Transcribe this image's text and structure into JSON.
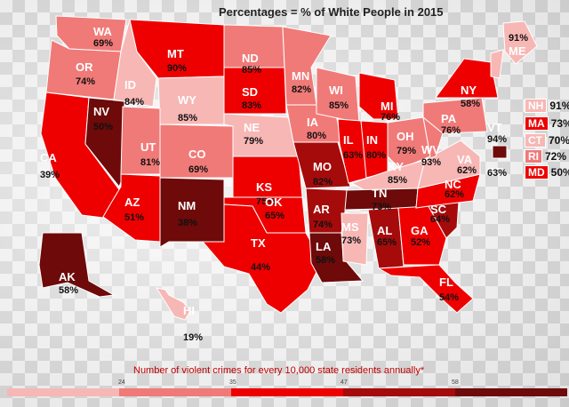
{
  "title": "Percentages = % of White People in 2015",
  "colors": {
    "lightest": "#f7b7b5",
    "light": "#f07a78",
    "mid": "#e83a36",
    "red": "#ee0000",
    "dark": "#a50b0b",
    "darkest": "#6e0a0a"
  },
  "states": [
    {
      "abbr": "WA",
      "pct": "69%"
    },
    {
      "abbr": "OR",
      "pct": "74%"
    },
    {
      "abbr": "CA",
      "pct": "39%"
    },
    {
      "abbr": "NV",
      "pct": "50%"
    },
    {
      "abbr": "ID",
      "pct": "84%"
    },
    {
      "abbr": "MT",
      "pct": "90%"
    },
    {
      "abbr": "WY",
      "pct": "85%"
    },
    {
      "abbr": "UT",
      "pct": "81%"
    },
    {
      "abbr": "AZ",
      "pct": "51%"
    },
    {
      "abbr": "CO",
      "pct": "69%"
    },
    {
      "abbr": "NM",
      "pct": "38%"
    },
    {
      "abbr": "ND",
      "pct": "85%"
    },
    {
      "abbr": "SD",
      "pct": "83%"
    },
    {
      "abbr": "NE",
      "pct": "79%"
    },
    {
      "abbr": "KS",
      "pct": "75%"
    },
    {
      "abbr": "OK",
      "pct": "65%"
    },
    {
      "abbr": "TX",
      "pct": "44%"
    },
    {
      "abbr": "MN",
      "pct": "82%"
    },
    {
      "abbr": "IA",
      "pct": "80%"
    },
    {
      "abbr": "MO",
      "pct": "82%"
    },
    {
      "abbr": "AR",
      "pct": "74%"
    },
    {
      "abbr": "LA",
      "pct": "58%"
    },
    {
      "abbr": "WI",
      "pct": "85%"
    },
    {
      "abbr": "IL",
      "pct": "63%"
    },
    {
      "abbr": "MI",
      "pct": "76%"
    },
    {
      "abbr": "IN",
      "pct": "80%"
    },
    {
      "abbr": "OH",
      "pct": "79%"
    },
    {
      "abbr": "KY",
      "pct": "85%"
    },
    {
      "abbr": "TN",
      "pct": "73%"
    },
    {
      "abbr": "MS",
      "pct": "73%"
    },
    {
      "abbr": "AL",
      "pct": "65%"
    },
    {
      "abbr": "GA",
      "pct": "52%"
    },
    {
      "abbr": "FL",
      "pct": "54%"
    },
    {
      "abbr": "SC",
      "pct": "64%"
    },
    {
      "abbr": "NC",
      "pct": "62%"
    },
    {
      "abbr": "VA",
      "pct": "62%"
    },
    {
      "abbr": "WV",
      "pct": "93%"
    },
    {
      "abbr": "PA",
      "pct": "76%"
    },
    {
      "abbr": "NY",
      "pct": "58%"
    },
    {
      "abbr": "ME",
      "pct": "91%"
    },
    {
      "abbr": "VT",
      "pct": "94%"
    },
    {
      "abbr": "DE",
      "pct": "63%"
    },
    {
      "abbr": "AK",
      "pct": "58%"
    },
    {
      "abbr": "HI",
      "pct": "19%"
    }
  ],
  "northeast_boxes": [
    {
      "abbr": "NH",
      "pct": "91%"
    },
    {
      "abbr": "MA",
      "pct": "73%"
    },
    {
      "abbr": "CT",
      "pct": "70%"
    },
    {
      "abbr": "RI",
      "pct": "72%"
    },
    {
      "abbr": "MD",
      "pct": "50%"
    }
  ],
  "legend": {
    "title": "Number of violent crimes for every 10,000 state residents annually*",
    "ticks": [
      "24",
      "35",
      "47",
      "58"
    ]
  }
}
